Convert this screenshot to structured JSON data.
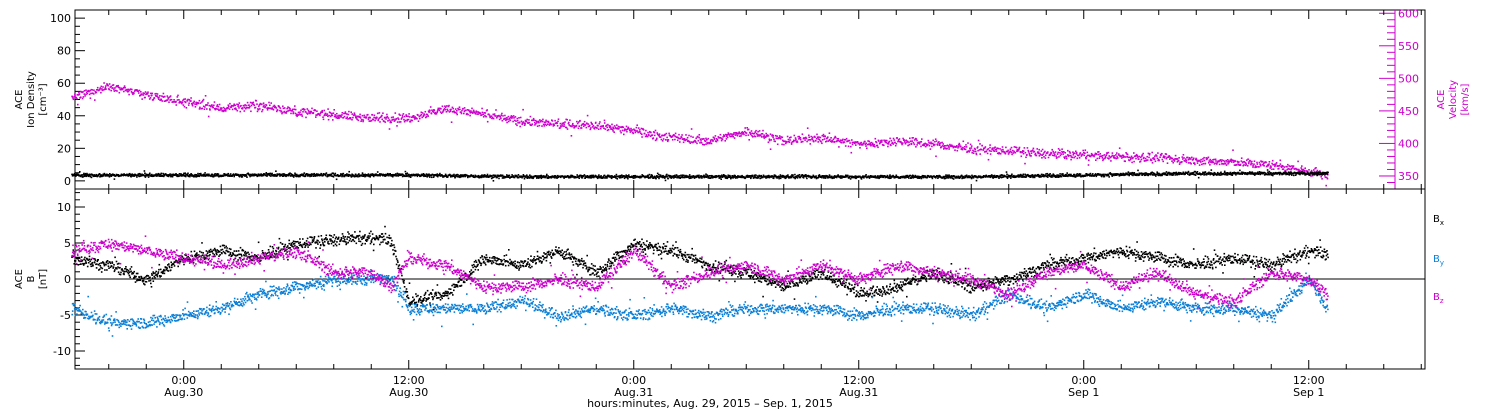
{
  "chart_data": [
    {
      "type": "scatter",
      "panel": "top",
      "ylabel_left": [
        "ACE",
        "Ion Density",
        "[cm⁻³]"
      ],
      "ylabel_right": [
        "ACE",
        "Velocity",
        "[km/s]"
      ],
      "ylim_left": [
        -5,
        105
      ],
      "ylim_right": [
        330,
        605
      ],
      "yticks_left": [
        "0",
        "20",
        "40",
        "60",
        "80",
        "100"
      ],
      "yticks_right": [
        "350",
        "400",
        "450",
        "500",
        "550",
        "600"
      ],
      "colors": {
        "density": "#000000",
        "velocity": "#cc00cc"
      },
      "series": [
        {
          "name": "density",
          "axis": "left",
          "x": [
            -6,
            0,
            6,
            12,
            18,
            24,
            30,
            36,
            42,
            48,
            54,
            60,
            61
          ],
          "y": [
            4,
            4,
            4,
            4,
            3,
            3,
            3,
            3,
            3,
            4,
            5,
            5,
            5
          ]
        },
        {
          "name": "velocity",
          "axis": "right",
          "x": [
            -6,
            -4,
            -2,
            0,
            2,
            4,
            6,
            8,
            10,
            12,
            14,
            16,
            18,
            20,
            22,
            24,
            26,
            28,
            30,
            32,
            34,
            36,
            38,
            40,
            42,
            44,
            46,
            48,
            50,
            52,
            54,
            56,
            58,
            60,
            61
          ],
          "y": [
            470,
            490,
            475,
            465,
            455,
            460,
            450,
            445,
            440,
            440,
            455,
            445,
            435,
            430,
            430,
            420,
            410,
            405,
            420,
            405,
            410,
            400,
            405,
            400,
            392,
            390,
            385,
            383,
            380,
            378,
            375,
            372,
            368,
            358,
            352
          ]
        }
      ]
    },
    {
      "type": "scatter",
      "panel": "bottom",
      "ylabel": [
        "ACE",
        "B",
        "[nT]"
      ],
      "ylim": [
        -12.5,
        12.5
      ],
      "yticks": [
        "-10",
        "-5",
        "0",
        "5",
        "10"
      ],
      "xlabel": "hours:minutes, Aug. 29, 2015 – Sep.  1, 2015",
      "xticks": [
        {
          "h": 0,
          "time": "0:00",
          "date": "Aug.30"
        },
        {
          "h": 12,
          "time": "12:00",
          "date": "Aug.30"
        },
        {
          "h": 24,
          "time": "0:00",
          "date": "Aug.31"
        },
        {
          "h": 36,
          "time": "12:00",
          "date": "Aug.31"
        },
        {
          "h": 48,
          "time": "0:00",
          "date": "Sep  1"
        },
        {
          "h": 60,
          "time": "12:00",
          "date": "Sep  1"
        }
      ],
      "xlim": [
        -5.8,
        66.2
      ],
      "legend": [
        {
          "label": "B",
          "sub": "x",
          "color": "#000000"
        },
        {
          "label": "B",
          "sub": "y",
          "color": "#0a7fd6"
        },
        {
          "label": "B",
          "sub": "z",
          "color": "#cc00cc"
        }
      ],
      "series": [
        {
          "name": "Bx",
          "x": [
            -6,
            -4,
            -2,
            0,
            2,
            4,
            6,
            8,
            10,
            11,
            12,
            14,
            16,
            18,
            20,
            22,
            24,
            26,
            28,
            30,
            32,
            34,
            36,
            38,
            40,
            42,
            44,
            46,
            48,
            50,
            52,
            54,
            56,
            58,
            60,
            61
          ],
          "y": [
            3,
            2,
            0,
            3,
            4,
            3,
            5,
            5.5,
            5.8,
            5.5,
            -3,
            -2,
            3,
            2,
            4,
            1,
            5,
            4,
            2,
            1,
            -1,
            1,
            -2,
            -1,
            1,
            -1,
            0,
            2,
            3,
            4,
            3,
            2,
            3,
            2,
            4,
            3.5
          ]
        },
        {
          "name": "By",
          "x": [
            -6,
            -4,
            -2,
            0,
            2,
            4,
            6,
            8,
            10,
            11,
            12,
            14,
            16,
            18,
            20,
            22,
            24,
            26,
            28,
            30,
            32,
            34,
            36,
            38,
            40,
            42,
            44,
            46,
            48,
            50,
            52,
            54,
            56,
            58,
            60,
            61
          ],
          "y": [
            -4,
            -6,
            -6,
            -5,
            -4,
            -2,
            -1,
            0,
            0,
            0.5,
            -4,
            -4,
            -4,
            -3,
            -5,
            -4,
            -5,
            -4,
            -5,
            -4,
            -4,
            -4,
            -5,
            -4,
            -4,
            -5,
            -2,
            -4,
            -2,
            -4,
            -3,
            -4,
            -4,
            -5,
            0,
            -4
          ]
        },
        {
          "name": "Bz",
          "x": [
            -6,
            -4,
            -2,
            0,
            2,
            4,
            6,
            8,
            10,
            11,
            12,
            14,
            16,
            18,
            20,
            22,
            24,
            26,
            28,
            30,
            32,
            34,
            36,
            38,
            40,
            42,
            44,
            46,
            48,
            50,
            52,
            54,
            56,
            58,
            60,
            61
          ],
          "y": [
            4,
            5,
            4,
            3,
            2,
            3,
            4,
            1,
            1,
            -1,
            3,
            2,
            -1,
            -1,
            0,
            -1,
            4,
            -1,
            1,
            2,
            0,
            2,
            0,
            2,
            1,
            0,
            -2,
            1,
            2,
            -1,
            1,
            -2,
            -3,
            1,
            0,
            -2
          ]
        }
      ]
    }
  ]
}
